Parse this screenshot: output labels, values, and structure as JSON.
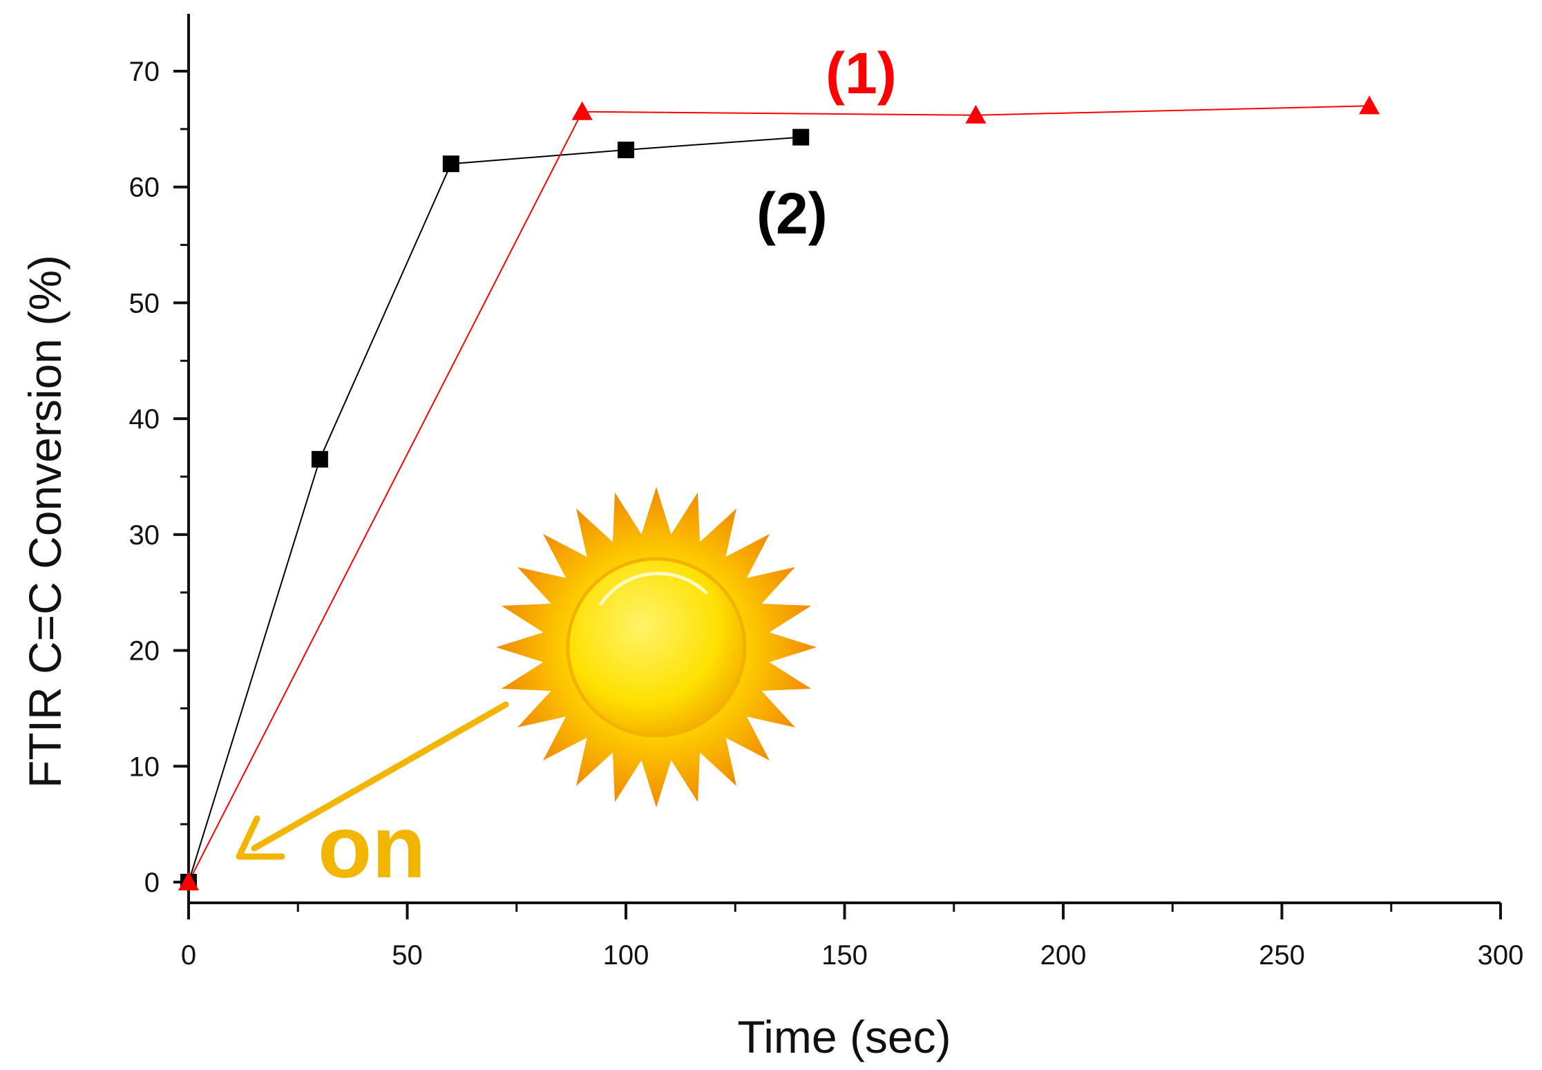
{
  "chart_data": {
    "type": "line",
    "title": "",
    "xlabel": "Time (sec)",
    "ylabel": "FTIR C=C Conversion (%)",
    "xlim": [
      0,
      300
    ],
    "ylim": [
      0,
      75
    ],
    "xticks": [
      0,
      50,
      100,
      150,
      200,
      250,
      300
    ],
    "yticks": [
      0,
      10,
      20,
      30,
      40,
      50,
      60,
      70
    ],
    "grid": false,
    "series": [
      {
        "name": "(1)",
        "color": "#ff0000",
        "marker": "triangle",
        "x": [
          0,
          90,
          180,
          270
        ],
        "y": [
          0,
          66.5,
          66.2,
          67.0
        ]
      },
      {
        "name": "(2)",
        "color": "#000000",
        "marker": "square",
        "x": [
          0,
          30,
          60,
          100,
          140
        ],
        "y": [
          0,
          36.5,
          62.0,
          63.2,
          64.3
        ]
      }
    ],
    "annotations": [
      {
        "text": "on",
        "color": "#f2b600",
        "icon": "sun-icon",
        "points_to": {
          "x": 0,
          "y": 0
        }
      }
    ]
  }
}
